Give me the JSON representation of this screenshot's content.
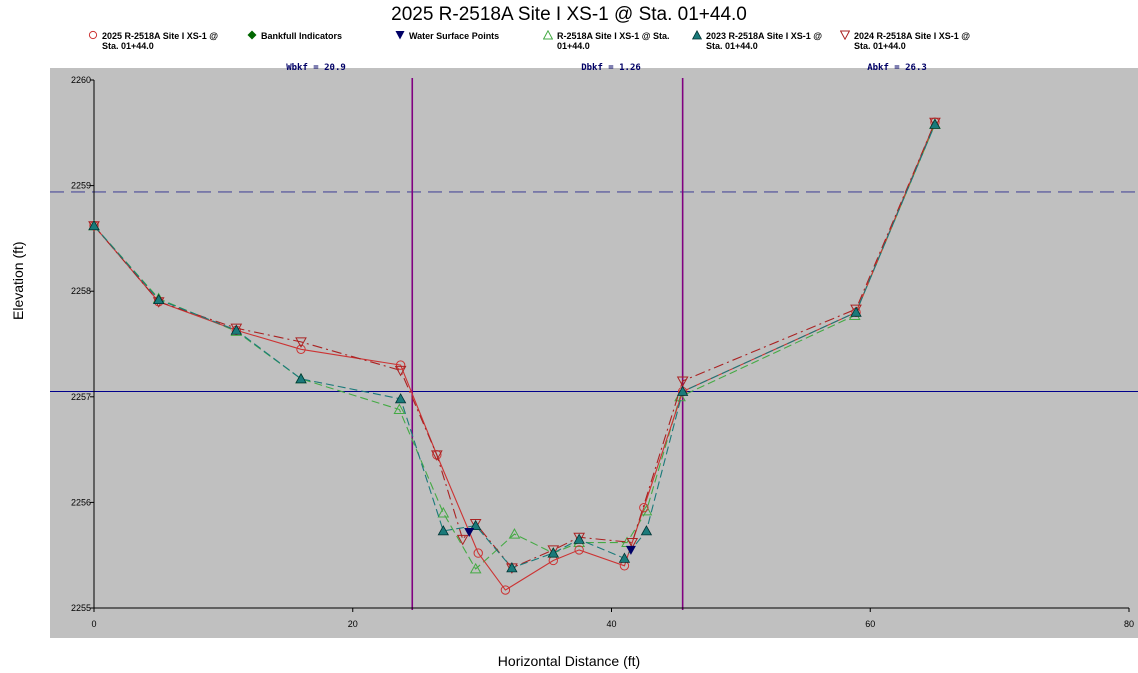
{
  "chart_data": {
    "type": "line",
    "title": "2025 R-2518A Site I XS-1 @ Sta. 01+44.0",
    "xlabel": "Horizontal Distance (ft)",
    "ylabel": "Elevation (ft)",
    "xlim": [
      0,
      80
    ],
    "ylim": [
      2255,
      2260
    ],
    "x_ticks": [
      "0",
      "20",
      "40",
      "60",
      "80"
    ],
    "y_ticks": [
      "2255",
      "2256",
      "2257",
      "2258",
      "2259",
      "2260"
    ],
    "grid": false,
    "legend_position": "top",
    "annotations": {
      "wbkf": "Wbkf = 20.9",
      "dbkf": "Dbkf = 1.26",
      "abkf": "Abkf = 26.3"
    },
    "reference_lines": {
      "bankfull_elevation": 2257.05,
      "flood_prone_elevation": 2258.94,
      "left_bank_station": 24.6,
      "right_bank_station": 45.5
    },
    "series": [
      {
        "name": "2025 R-2518A Site I XS-1 @\nSta. 01+44.0",
        "color": "#cc3333",
        "marker": "circle-open",
        "dash": "solid",
        "points": [
          [
            0,
            2258.62
          ],
          [
            5,
            2257.9
          ],
          [
            11,
            2257.63
          ],
          [
            16,
            2257.45
          ],
          [
            23.7,
            2257.3
          ],
          [
            26.5,
            2256.45
          ],
          [
            29.7,
            2255.52
          ],
          [
            31.8,
            2255.17
          ],
          [
            35.5,
            2255.45
          ],
          [
            37.5,
            2255.55
          ],
          [
            41,
            2255.4
          ],
          [
            42.5,
            2255.95
          ],
          [
            45.5,
            2257.05
          ],
          [
            58.9,
            2257.8
          ],
          [
            65,
            2259.6
          ]
        ]
      },
      {
        "name": "Bankfull Indicators",
        "color": "#006600",
        "marker": "diamond",
        "points": []
      },
      {
        "name": "Water Surface Points",
        "color": "#000066",
        "marker": "triangle-down",
        "points": [
          [
            29,
            2255.72
          ],
          [
            41.5,
            2255.55
          ]
        ]
      },
      {
        "name": "R-2518A Site I XS-1 @ Sta.\n01+44.0",
        "color": "#44aa44",
        "marker": "triangle-open",
        "dash": "dashed",
        "points": [
          [
            0,
            2258.62
          ],
          [
            5,
            2257.93
          ],
          [
            11,
            2257.62
          ],
          [
            16,
            2257.17
          ],
          [
            23.6,
            2256.88
          ],
          [
            27,
            2255.9
          ],
          [
            29.5,
            2255.37
          ],
          [
            32.5,
            2255.7
          ],
          [
            35.5,
            2255.52
          ],
          [
            37.5,
            2255.62
          ],
          [
            41.2,
            2255.62
          ],
          [
            42.7,
            2255.92
          ],
          [
            45.3,
            2257.0
          ],
          [
            58.8,
            2257.77
          ],
          [
            65,
            2259.58
          ]
        ]
      },
      {
        "name": "2023 R-2518A Site I XS-1 @\nSta. 01+44.0",
        "color": "#1a7a7a",
        "marker": "triangle-filled",
        "dash": "dashed",
        "points": [
          [
            0,
            2258.62
          ],
          [
            5,
            2257.92
          ],
          [
            11,
            2257.63
          ],
          [
            16,
            2257.17
          ],
          [
            23.7,
            2256.98
          ],
          [
            27,
            2255.73
          ],
          [
            29.5,
            2255.78
          ],
          [
            32.3,
            2255.38
          ],
          [
            35.5,
            2255.52
          ],
          [
            37.5,
            2255.65
          ],
          [
            41,
            2255.47
          ],
          [
            42.7,
            2255.73
          ],
          [
            45.5,
            2257.05
          ],
          [
            58.9,
            2257.8
          ],
          [
            65,
            2259.58
          ]
        ]
      },
      {
        "name": "2024 R-2518A Site I XS-1 @\nSta. 01+44.0",
        "color": "#aa2222",
        "marker": "triangle-down-open",
        "dash": "dashdot",
        "points": [
          [
            0,
            2258.62
          ],
          [
            5,
            2257.9
          ],
          [
            11,
            2257.65
          ],
          [
            16,
            2257.52
          ],
          [
            23.7,
            2257.25
          ],
          [
            26.5,
            2256.45
          ],
          [
            28.5,
            2255.65
          ],
          [
            29.5,
            2255.8
          ],
          [
            32.3,
            2255.38
          ],
          [
            35.5,
            2255.55
          ],
          [
            37.5,
            2255.67
          ],
          [
            41.6,
            2255.62
          ],
          [
            45.5,
            2257.15
          ],
          [
            58.9,
            2257.83
          ],
          [
            65,
            2259.6
          ]
        ]
      }
    ]
  }
}
